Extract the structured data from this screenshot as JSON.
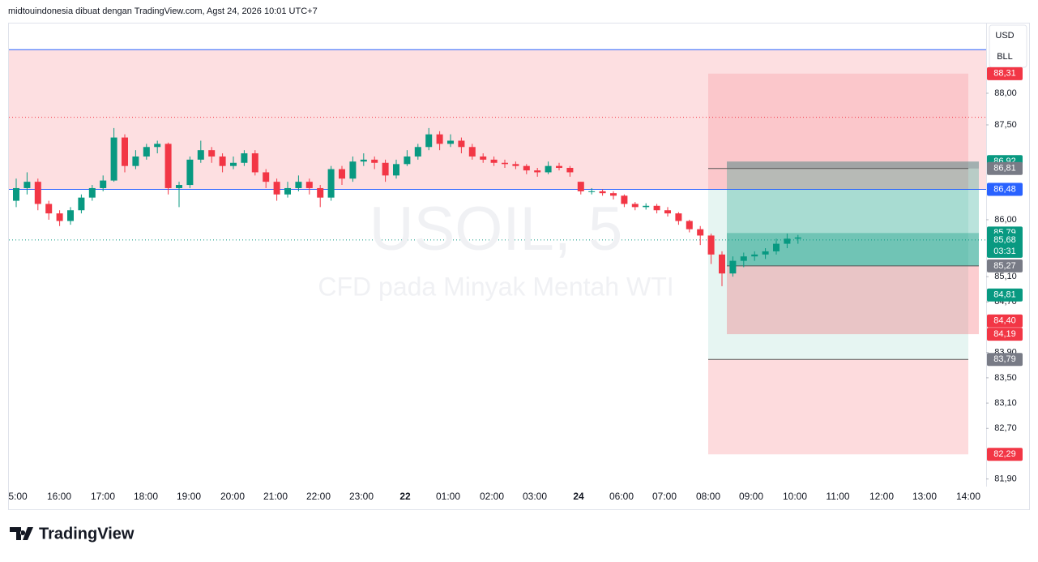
{
  "header": {
    "text": "midtouindonesia dibuat dengan TradingView.com, Agst 24, 2026 10:01 UTC+7"
  },
  "currency": [
    "USD",
    "BLL"
  ],
  "footer": {
    "logo": "TradingView"
  },
  "chart_data": {
    "type": "candlestick",
    "title": "USOIL, 5",
    "subtitle": "CFD pada Minyak Mentah WTI",
    "up_color": "#089981",
    "down_color": "#f23645",
    "ylim": [
      81.78,
      89.09
    ],
    "yticks": [
      {
        "value": 88,
        "label": "88,00"
      },
      {
        "value": 87.5,
        "label": "87,50"
      },
      {
        "value": 86,
        "label": "86,00"
      },
      {
        "value": 85.1,
        "label": "85,10"
      },
      {
        "value": 84.7,
        "label": "84,70"
      },
      {
        "value": 83.9,
        "label": "83,90"
      },
      {
        "value": 83.5,
        "label": "83,50"
      },
      {
        "value": 83.1,
        "label": "83,10"
      },
      {
        "value": 82.7,
        "label": "82,70"
      },
      {
        "value": 81.9,
        "label": "81,90"
      }
    ],
    "x_labels": [
      "5:00",
      "16:00",
      "17:00",
      "18:00",
      "19:00",
      "20:00",
      "21:00",
      "22:00",
      "23:00",
      "22",
      "01:00",
      "02:00",
      "03:00",
      "24",
      "06:00",
      "07:00",
      "08:00",
      "09:00",
      "10:00",
      "11:00",
      "12:00",
      "13:00",
      "14:00"
    ],
    "candles": [
      [
        86.3,
        86.65,
        86.2,
        86.5
      ],
      [
        86.5,
        86.75,
        86.4,
        86.6
      ],
      [
        86.6,
        86.65,
        86.15,
        86.25
      ],
      [
        86.25,
        86.3,
        86.0,
        86.1
      ],
      [
        86.1,
        86.15,
        85.9,
        85.98
      ],
      [
        85.98,
        86.2,
        85.92,
        86.15
      ],
      [
        86.15,
        86.4,
        86.1,
        86.35
      ],
      [
        86.35,
        86.55,
        86.3,
        86.5
      ],
      [
        86.5,
        86.7,
        86.45,
        86.62
      ],
      [
        86.62,
        87.45,
        86.6,
        87.3
      ],
      [
        87.3,
        87.35,
        86.75,
        86.85
      ],
      [
        86.85,
        87.1,
        86.8,
        87.0
      ],
      [
        87.0,
        87.2,
        86.95,
        87.15
      ],
      [
        87.15,
        87.25,
        87.05,
        87.2
      ],
      [
        87.2,
        87.22,
        86.4,
        86.5
      ],
      [
        86.5,
        86.6,
        86.2,
        86.55
      ],
      [
        86.55,
        87.0,
        86.5,
        86.95
      ],
      [
        86.95,
        87.25,
        86.9,
        87.1
      ],
      [
        87.1,
        87.15,
        86.9,
        87.0
      ],
      [
        87.0,
        87.05,
        86.75,
        86.85
      ],
      [
        86.85,
        87.0,
        86.8,
        86.9
      ],
      [
        86.9,
        87.1,
        86.85,
        87.05
      ],
      [
        87.05,
        87.1,
        86.7,
        86.75
      ],
      [
        86.75,
        86.8,
        86.5,
        86.6
      ],
      [
        86.6,
        86.65,
        86.3,
        86.4
      ],
      [
        86.4,
        86.6,
        86.35,
        86.5
      ],
      [
        86.5,
        86.7,
        86.45,
        86.6
      ],
      [
        86.6,
        86.65,
        86.4,
        86.5
      ],
      [
        86.5,
        86.55,
        86.2,
        86.35
      ],
      [
        86.35,
        86.85,
        86.3,
        86.8
      ],
      [
        86.8,
        86.85,
        86.55,
        86.65
      ],
      [
        86.65,
        87.0,
        86.6,
        86.92
      ],
      [
        86.92,
        87.05,
        86.85,
        86.95
      ],
      [
        86.95,
        87.0,
        86.8,
        86.9
      ],
      [
        86.9,
        86.95,
        86.6,
        86.7
      ],
      [
        86.7,
        86.95,
        86.65,
        86.88
      ],
      [
        86.88,
        87.1,
        86.85,
        87.0
      ],
      [
        87.0,
        87.2,
        86.95,
        87.15
      ],
      [
        87.15,
        87.45,
        87.1,
        87.35
      ],
      [
        87.35,
        87.4,
        87.1,
        87.2
      ],
      [
        87.2,
        87.35,
        87.15,
        87.25
      ],
      [
        87.25,
        87.3,
        87.05,
        87.15
      ],
      [
        87.15,
        87.2,
        86.95,
        87.0
      ],
      [
        87.0,
        87.05,
        86.9,
        86.95
      ],
      [
        86.95,
        87.0,
        86.85,
        86.9
      ],
      [
        86.9,
        86.95,
        86.82,
        86.88
      ],
      [
        86.88,
        86.92,
        86.8,
        86.85
      ],
      [
        86.85,
        86.88,
        86.72,
        86.78
      ],
      [
        86.78,
        86.82,
        86.68,
        86.75
      ],
      [
        86.75,
        86.92,
        86.72,
        86.85
      ],
      [
        86.85,
        86.9,
        86.78,
        86.82
      ],
      [
        86.82,
        86.85,
        86.68,
        86.75
      ],
      [
        86.6,
        86.6,
        86.4,
        86.45
      ],
      [
        86.45,
        86.5,
        86.4,
        86.45
      ],
      [
        86.45,
        86.48,
        86.38,
        86.42
      ],
      [
        86.42,
        86.45,
        86.32,
        86.38
      ],
      [
        86.38,
        86.4,
        86.2,
        86.25
      ],
      [
        86.25,
        86.28,
        86.15,
        86.2
      ],
      [
        86.2,
        86.26,
        86.16,
        86.22
      ],
      [
        86.22,
        86.25,
        86.1,
        86.15
      ],
      [
        86.15,
        86.2,
        86.05,
        86.1
      ],
      [
        86.1,
        86.12,
        85.92,
        85.98
      ],
      [
        85.98,
        86.0,
        85.8,
        85.85
      ],
      [
        85.85,
        85.9,
        85.6,
        85.75
      ],
      [
        85.75,
        85.78,
        85.3,
        85.45
      ],
      [
        85.45,
        85.5,
        84.95,
        85.15
      ],
      [
        85.15,
        85.42,
        85.1,
        85.35
      ],
      [
        85.35,
        85.48,
        85.25,
        85.42
      ],
      [
        85.42,
        85.5,
        85.35,
        85.45
      ],
      [
        85.45,
        85.55,
        85.38,
        85.5
      ],
      [
        85.5,
        85.7,
        85.45,
        85.62
      ],
      [
        85.62,
        85.78,
        85.55,
        85.7
      ],
      [
        85.7,
        85.76,
        85.62,
        85.72
      ]
    ],
    "levels": [
      {
        "value": 88.69,
        "color": "#2962ff",
        "style": "solid"
      },
      {
        "value": 87.62,
        "color": "#f23645",
        "style": "dotted"
      }
    ],
    "price_labels": [
      {
        "value": 88.31,
        "label": "88,31",
        "color": "#f23645"
      },
      {
        "value": 86.92,
        "label": "86,92",
        "color": "#089981"
      },
      {
        "value": 86.81,
        "label": "86,81",
        "color": "#787b86"
      },
      {
        "value": 86.48,
        "label": "86,48",
        "color": "#2962ff"
      },
      {
        "value": 85.79,
        "label": "85,79",
        "color": "#089981"
      },
      {
        "value": 85.68,
        "label": "85,68",
        "color": "#089981",
        "countdown": "03:31"
      },
      {
        "value": 85.27,
        "label": "85,27",
        "color": "#787b86"
      },
      {
        "value": 84.81,
        "label": "84,81",
        "color": "#089981"
      },
      {
        "value": 84.4,
        "label": "84,40",
        "color": "#f23645"
      },
      {
        "value": 84.19,
        "label": "84,19",
        "color": "#f23645"
      },
      {
        "value": 83.79,
        "label": "83,79",
        "color": "#787b86"
      },
      {
        "value": 82.29,
        "label": "82,29",
        "color": "#f23645"
      }
    ]
  }
}
